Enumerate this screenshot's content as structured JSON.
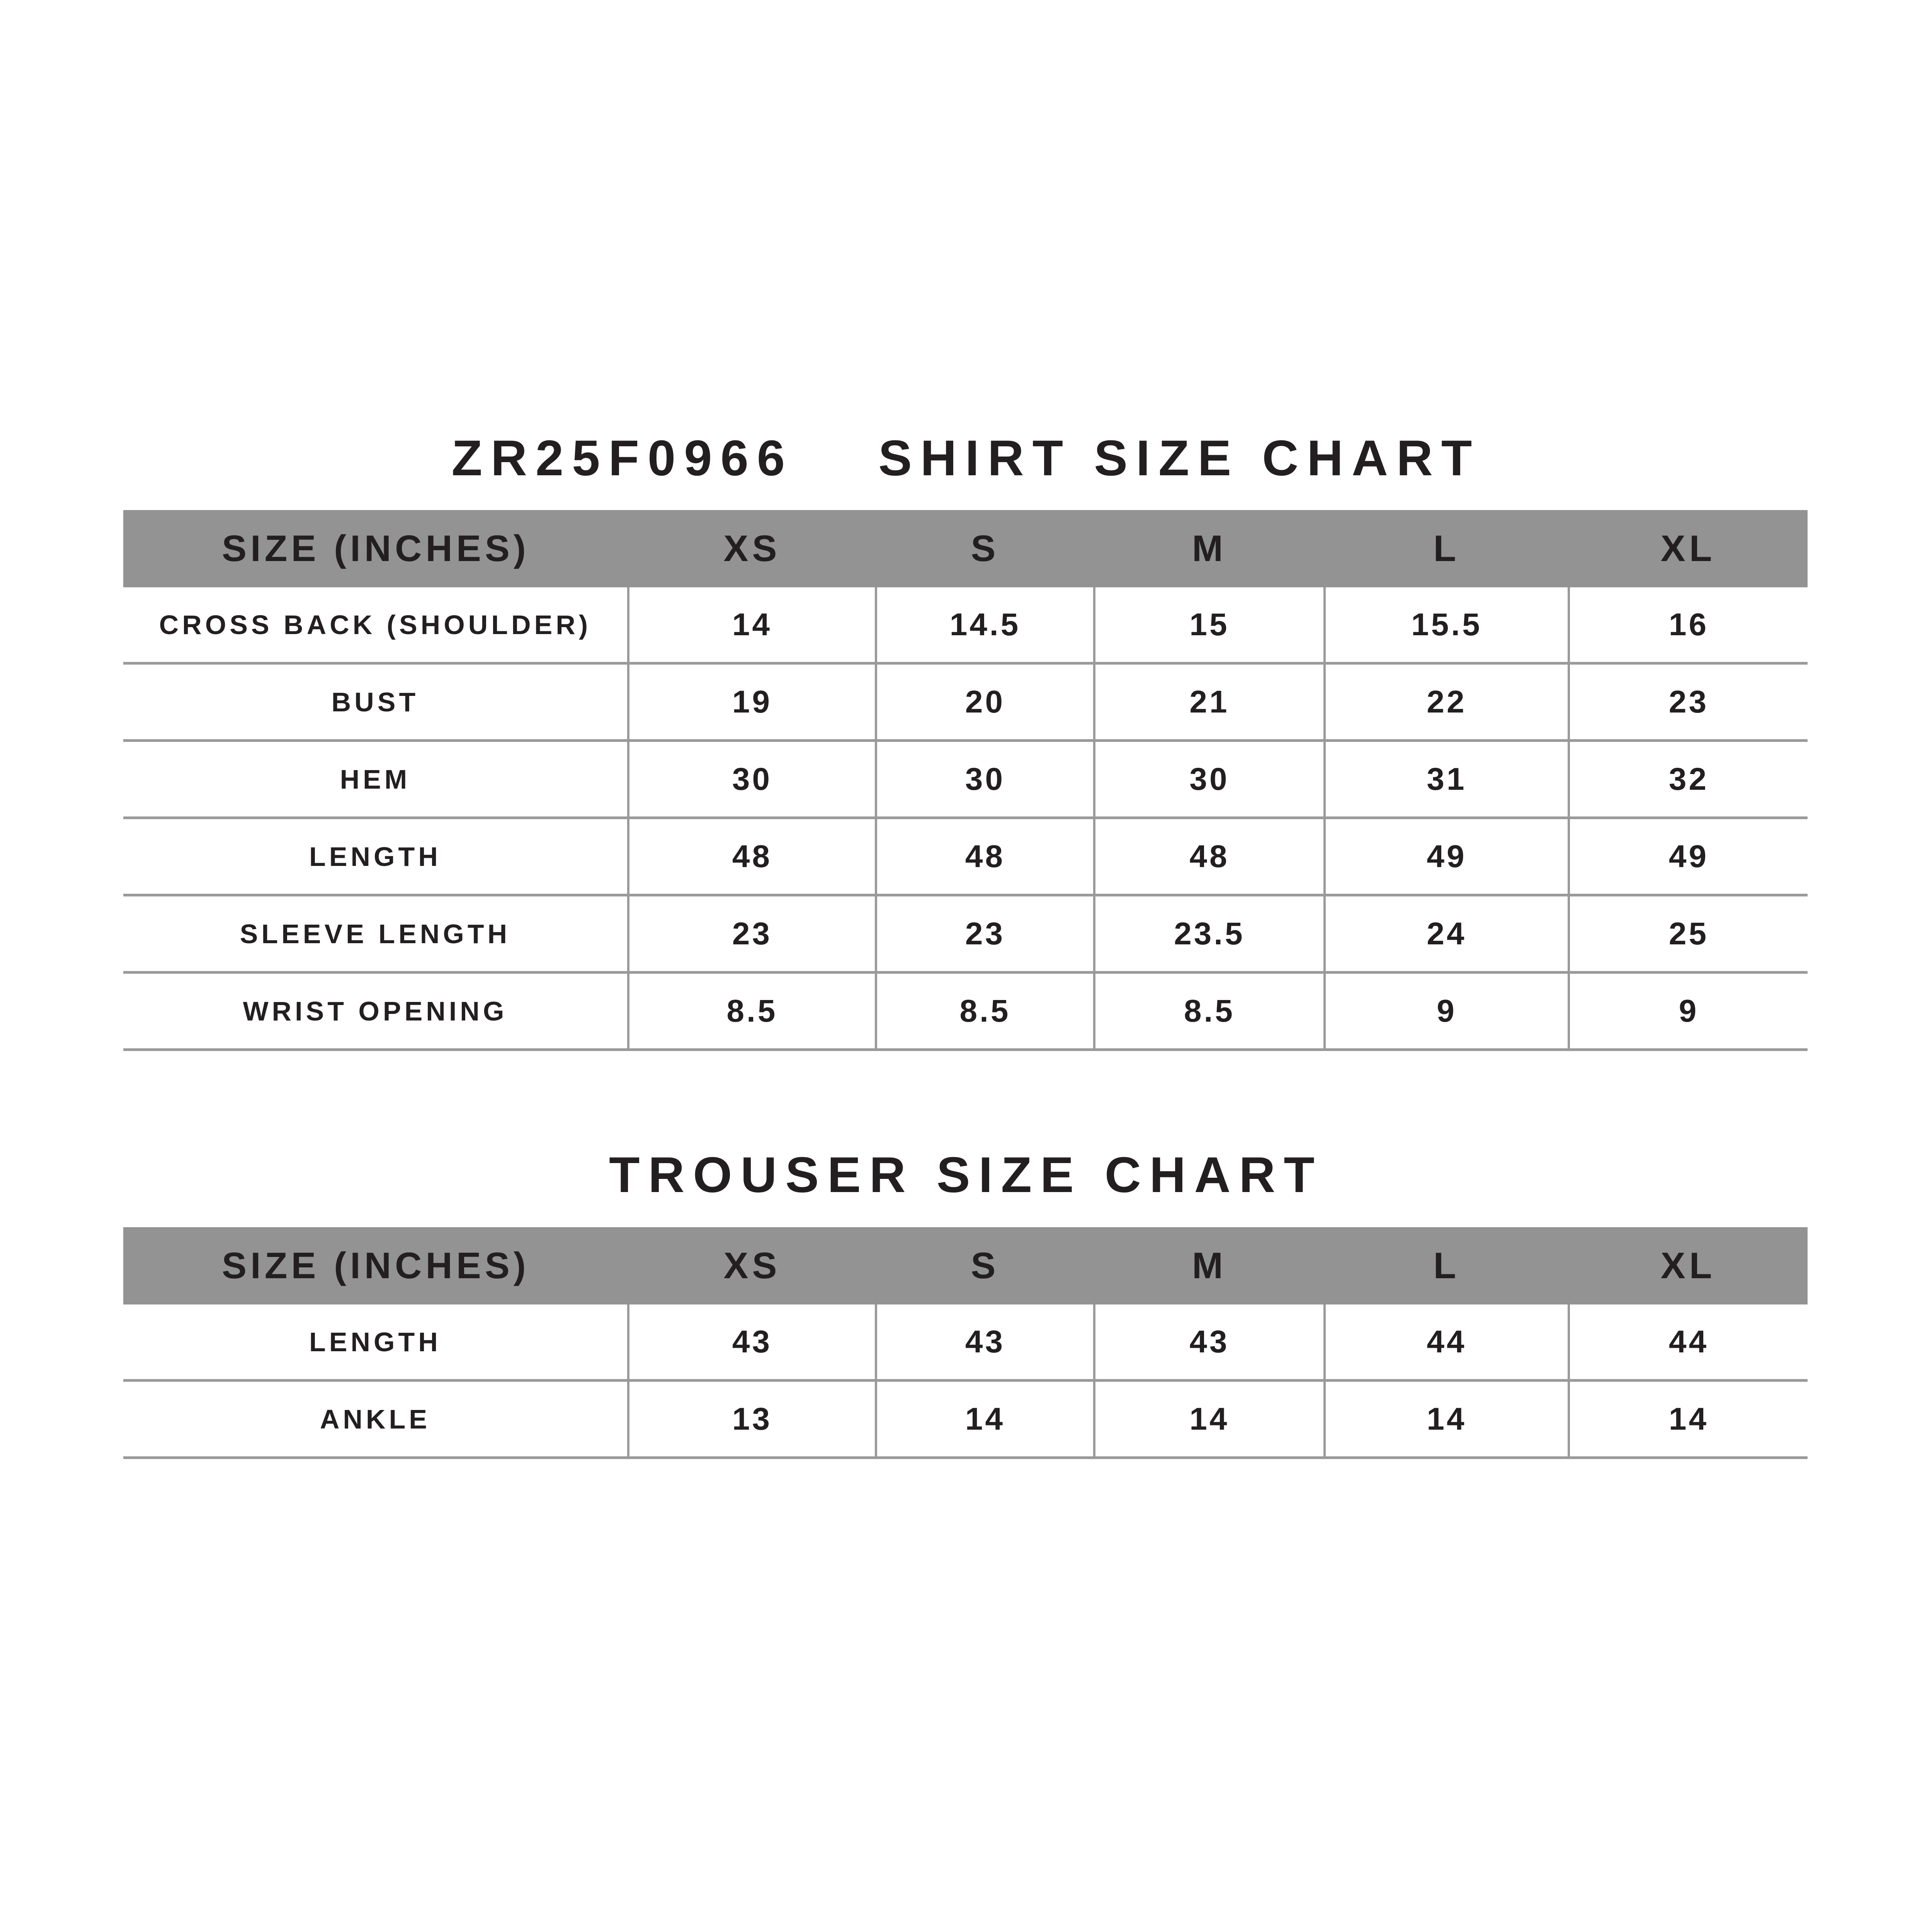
{
  "shirt": {
    "code": "ZR25F0966",
    "title": "SHIRT SIZE CHART",
    "headers": [
      "SIZE (INCHES)",
      "XS",
      "S",
      "M",
      "L",
      "XL"
    ],
    "rows": [
      {
        "label": "CROSS BACK (SHOULDER)",
        "values": [
          "14",
          "14.5",
          "15",
          "15.5",
          "16"
        ]
      },
      {
        "label": "BUST",
        "values": [
          "19",
          "20",
          "21",
          "22",
          "23"
        ]
      },
      {
        "label": "HEM",
        "values": [
          "30",
          "30",
          "30",
          "31",
          "32"
        ]
      },
      {
        "label": "LENGTH",
        "values": [
          "48",
          "48",
          "48",
          "49",
          "49"
        ]
      },
      {
        "label": "SLEEVE LENGTH",
        "values": [
          "23",
          "23",
          "23.5",
          "24",
          "25"
        ]
      },
      {
        "label": "WRIST OPENING",
        "values": [
          "8.5",
          "8.5",
          "8.5",
          "9",
          "9"
        ]
      }
    ]
  },
  "trouser": {
    "title": "TROUSER SIZE CHART",
    "headers": [
      "SIZE (INCHES)",
      "XS",
      "S",
      "M",
      "L",
      "XL"
    ],
    "rows": [
      {
        "label": "LENGTH",
        "values": [
          "43",
          "43",
          "43",
          "44",
          "44"
        ]
      },
      {
        "label": "ANKLE",
        "values": [
          "13",
          "14",
          "14",
          "14",
          "14"
        ]
      }
    ]
  },
  "colors": {
    "header_bg": "#939393",
    "text": "#231f20",
    "grid": "#9a9a9a"
  }
}
